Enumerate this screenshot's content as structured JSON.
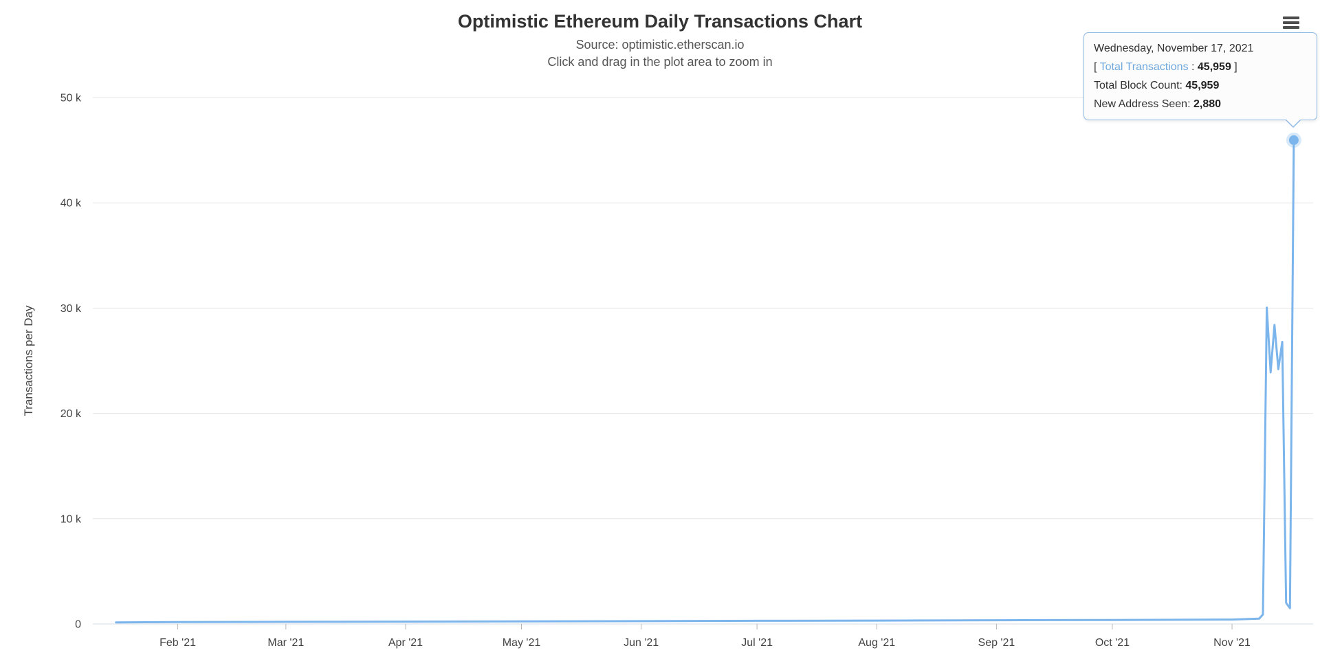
{
  "header": {
    "title": "Optimistic Ethereum Daily Transactions Chart",
    "subtitle_source": "Source: optimistic.etherscan.io",
    "subtitle_hint": "Click and drag in the plot area to zoom in"
  },
  "menu": {
    "icon": "hamburger-menu-icon"
  },
  "tooltip": {
    "date": "Wednesday, November 17, 2021",
    "bracket_open": "[ ",
    "total_transactions_label": "Total Transactions",
    "separator": " : ",
    "total_transactions_value": "45,959",
    "bracket_close": " ]",
    "block_count_label": "Total Block Count: ",
    "block_count_value": "45,959",
    "new_address_label": "New Address Seen: ",
    "new_address_value": "2,880"
  },
  "colors": {
    "series_line": "#7cb5ec",
    "tooltip_label": "#6fa8dc",
    "tooltip_border": "#8db8e3",
    "gridline": "#e6e6e6",
    "axis_line": "#d6dce6",
    "tick": "#b6b6b6"
  },
  "chart_data": {
    "type": "line",
    "title": "Optimistic Ethereum Daily Transactions Chart",
    "subtitle": "Source: optimistic.etherscan.io",
    "xlabel": "",
    "ylabel": "Transactions per Day",
    "ylim": [
      0,
      50000
    ],
    "x_range": [
      "2021-01-10",
      "2021-11-22"
    ],
    "grid": true,
    "legend": false,
    "yticks": [
      {
        "value": 0,
        "label": "0"
      },
      {
        "value": 10000,
        "label": "10 k"
      },
      {
        "value": 20000,
        "label": "20 k"
      },
      {
        "value": 30000,
        "label": "30 k"
      },
      {
        "value": 40000,
        "label": "40 k"
      },
      {
        "value": 50000,
        "label": "50 k"
      }
    ],
    "xticks": [
      {
        "date": "2021-02-01",
        "label": "Feb '21"
      },
      {
        "date": "2021-03-01",
        "label": "Mar '21"
      },
      {
        "date": "2021-04-01",
        "label": "Apr '21"
      },
      {
        "date": "2021-05-01",
        "label": "May '21"
      },
      {
        "date": "2021-06-01",
        "label": "Jun '21"
      },
      {
        "date": "2021-07-01",
        "label": "Jul '21"
      },
      {
        "date": "2021-08-01",
        "label": "Aug '21"
      },
      {
        "date": "2021-09-01",
        "label": "Sep '21"
      },
      {
        "date": "2021-10-01",
        "label": "Oct '21"
      },
      {
        "date": "2021-11-01",
        "label": "Nov '21"
      }
    ],
    "series": [
      {
        "name": "Total Transactions",
        "color": "#7cb5ec",
        "points": [
          [
            "2021-01-16",
            150
          ],
          [
            "2021-02-01",
            180
          ],
          [
            "2021-03-01",
            200
          ],
          [
            "2021-04-01",
            220
          ],
          [
            "2021-05-01",
            250
          ],
          [
            "2021-06-01",
            270
          ],
          [
            "2021-07-01",
            300
          ],
          [
            "2021-08-01",
            320
          ],
          [
            "2021-09-01",
            350
          ],
          [
            "2021-10-01",
            380
          ],
          [
            "2021-11-01",
            420
          ],
          [
            "2021-11-08",
            500
          ],
          [
            "2021-11-09",
            900
          ],
          [
            "2021-11-10",
            30050
          ],
          [
            "2021-11-11",
            23900
          ],
          [
            "2021-11-12",
            28400
          ],
          [
            "2021-11-13",
            24200
          ],
          [
            "2021-11-14",
            26800
          ],
          [
            "2021-11-15",
            2000
          ],
          [
            "2021-11-16",
            1500
          ],
          [
            "2021-11-17",
            45959
          ]
        ]
      }
    ],
    "highlight_point": {
      "date": "2021-11-17",
      "value": 45959,
      "total_block_count": 45959,
      "new_address_seen": 2880
    }
  }
}
